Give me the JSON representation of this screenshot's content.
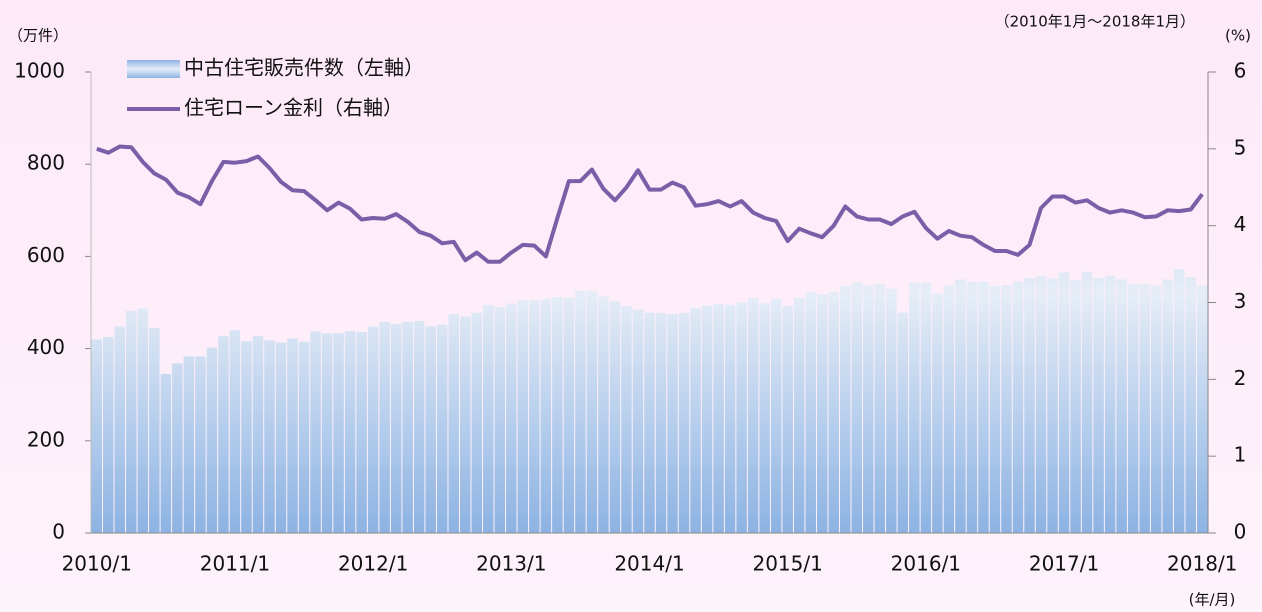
{
  "chart_data": {
    "type": "bar",
    "subtitle": "（2010年1月～2018年1月）",
    "y_label": "（万件）",
    "y2_label": "(%)",
    "x_label": "(年/月)",
    "categories": [
      "2010/1",
      null,
      null,
      null,
      null,
      null,
      null,
      null,
      null,
      null,
      null,
      null,
      "2011/1",
      null,
      null,
      null,
      null,
      null,
      null,
      null,
      null,
      null,
      null,
      null,
      "2012/1",
      null,
      null,
      null,
      null,
      null,
      null,
      null,
      null,
      null,
      null,
      null,
      "2013/1",
      null,
      null,
      null,
      null,
      null,
      null,
      null,
      null,
      null,
      null,
      null,
      "2014/1",
      null,
      null,
      null,
      null,
      null,
      null,
      null,
      null,
      null,
      null,
      null,
      "2015/1",
      null,
      null,
      null,
      null,
      null,
      null,
      null,
      null,
      null,
      null,
      null,
      "2016/1",
      null,
      null,
      null,
      null,
      null,
      null,
      null,
      null,
      null,
      null,
      null,
      "2017/1",
      null,
      null,
      null,
      null,
      null,
      null,
      null,
      null,
      null,
      null,
      null,
      "2018/1"
    ],
    "series": [
      {
        "name": "中古住宅販売件数（左軸）",
        "type": "bar",
        "color": "#8db3e3",
        "values": [
          420,
          425,
          448,
          482,
          487,
          445,
          345,
          368,
          383,
          383,
          402,
          427,
          440,
          416,
          427,
          418,
          413,
          422,
          415,
          437,
          433,
          433,
          438,
          436,
          448,
          458,
          453,
          458,
          460,
          448,
          452,
          475,
          470,
          478,
          495,
          490,
          498,
          505,
          505,
          507,
          512,
          510,
          525,
          525,
          513,
          503,
          492,
          485,
          478,
          477,
          475,
          477,
          488,
          493,
          497,
          495,
          500,
          510,
          498,
          508,
          492,
          510,
          523,
          518,
          523,
          535,
          543,
          537,
          540,
          530,
          478,
          543,
          543,
          520,
          537,
          550,
          545,
          545,
          535,
          538,
          545,
          553,
          557,
          552,
          565,
          548,
          567,
          553,
          558,
          550,
          540,
          540,
          537,
          550,
          572,
          555,
          537
        ]
      },
      {
        "name": "住宅ローン金利（右軸）",
        "type": "line",
        "axis": "y2",
        "color": "#7b5ea7",
        "values": [
          5.0,
          4.95,
          5.03,
          5.02,
          4.83,
          4.68,
          4.6,
          4.43,
          4.37,
          4.28,
          4.58,
          4.83,
          4.82,
          4.84,
          4.9,
          4.75,
          4.57,
          4.46,
          4.45,
          4.33,
          4.2,
          4.3,
          4.22,
          4.08,
          4.1,
          4.09,
          4.15,
          4.05,
          3.92,
          3.87,
          3.77,
          3.79,
          3.55,
          3.65,
          3.53,
          3.53,
          3.65,
          3.75,
          3.74,
          3.6,
          4.1,
          4.58,
          4.58,
          4.73,
          4.48,
          4.33,
          4.5,
          4.72,
          4.47,
          4.47,
          4.56,
          4.5,
          4.26,
          4.28,
          4.32,
          4.25,
          4.32,
          4.17,
          4.1,
          4.06,
          3.8,
          3.96,
          3.9,
          3.85,
          4.0,
          4.25,
          4.12,
          4.08,
          4.08,
          4.02,
          4.12,
          4.18,
          3.97,
          3.83,
          3.93,
          3.87,
          3.85,
          3.75,
          3.67,
          3.67,
          3.62,
          3.75,
          4.23,
          4.38,
          4.38,
          4.3,
          4.33,
          4.23,
          4.17,
          4.2,
          4.17,
          4.11,
          4.12,
          4.2,
          4.19,
          4.21,
          4.41
        ]
      }
    ],
    "ylim": [
      0,
      1000
    ],
    "yticks": [
      0,
      200,
      400,
      600,
      800,
      1000
    ],
    "y2lim": [
      0,
      6
    ],
    "y2ticks": [
      0,
      1,
      2,
      3,
      4,
      5,
      6
    ],
    "legend": "upper left"
  }
}
